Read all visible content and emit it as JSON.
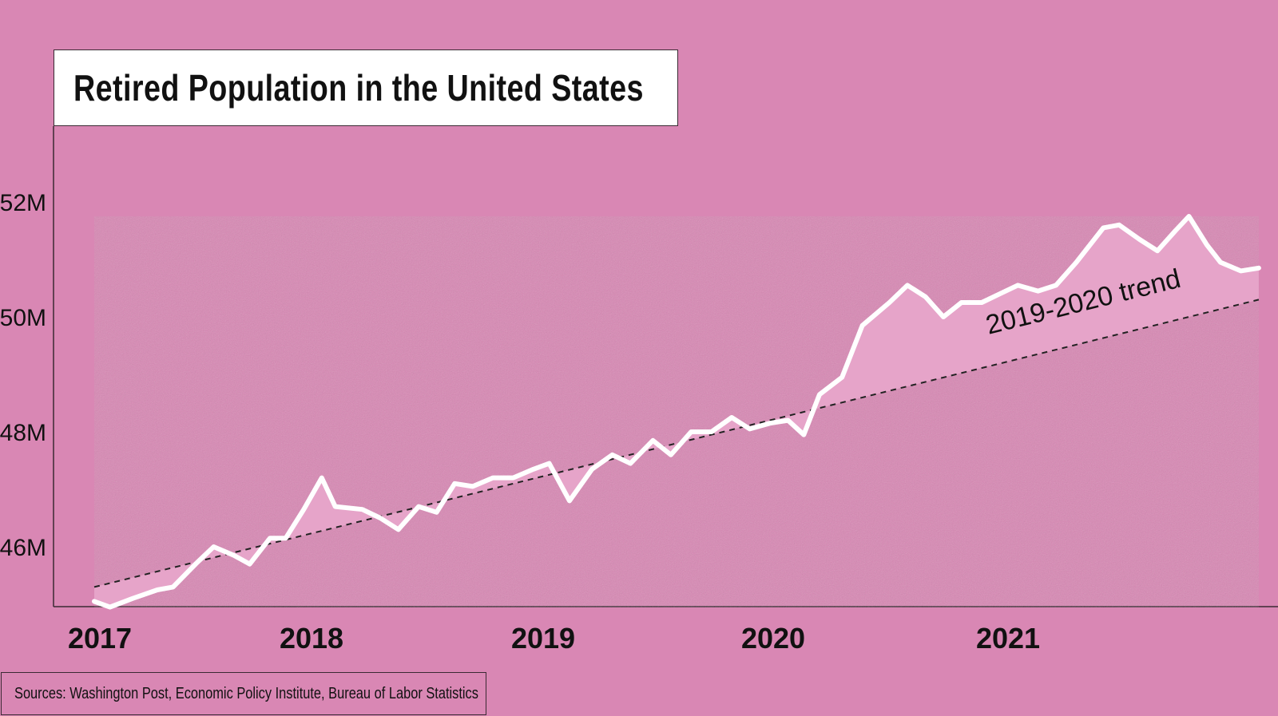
{
  "chart_data": {
    "type": "line",
    "title": "Retired Population in the United States",
    "source": "Sources: Washington Post, Economic Policy Institute, Bureau of Labor Statistics",
    "xlabel": "",
    "ylabel": "",
    "xlim": [
      2017.0,
      2022.0
    ],
    "ylim": [
      45.0,
      53.3
    ],
    "y_ticks": [
      {
        "value": 46,
        "label": "46M"
      },
      {
        "value": 48,
        "label": "48M"
      },
      {
        "value": 50,
        "label": "50M"
      },
      {
        "value": 52,
        "label": "52M"
      }
    ],
    "x_ticks": [
      {
        "value": 2017,
        "label": "2017"
      },
      {
        "value": 2018,
        "label": "2018"
      },
      {
        "value": 2019,
        "label": "2019"
      },
      {
        "value": 2020,
        "label": "2020"
      },
      {
        "value": 2021,
        "label": "2021"
      }
    ],
    "series": [
      {
        "color": "#ffffff",
        "points": [
          [
            2017.0,
            45.05
          ],
          [
            2017.07,
            44.95
          ],
          [
            2017.17,
            45.1
          ],
          [
            2017.28,
            45.25
          ],
          [
            2017.35,
            45.3
          ],
          [
            2017.45,
            45.7
          ],
          [
            2017.53,
            46.0
          ],
          [
            2017.62,
            45.85
          ],
          [
            2017.69,
            45.7
          ],
          [
            2017.78,
            46.15
          ],
          [
            2017.85,
            46.15
          ],
          [
            2017.93,
            46.65
          ],
          [
            2018.01,
            47.2
          ],
          [
            2018.07,
            46.7
          ],
          [
            2018.19,
            46.65
          ],
          [
            2018.27,
            46.5
          ],
          [
            2018.35,
            46.3
          ],
          [
            2018.44,
            46.7
          ],
          [
            2018.52,
            46.6
          ],
          [
            2018.6,
            47.1
          ],
          [
            2018.68,
            47.05
          ],
          [
            2018.77,
            47.2
          ],
          [
            2018.86,
            47.2
          ],
          [
            2018.95,
            47.35
          ],
          [
            2019.02,
            47.45
          ],
          [
            2019.11,
            46.8
          ],
          [
            2019.21,
            47.35
          ],
          [
            2019.3,
            47.6
          ],
          [
            2019.38,
            47.45
          ],
          [
            2019.48,
            47.85
          ],
          [
            2019.56,
            47.6
          ],
          [
            2019.65,
            48.0
          ],
          [
            2019.74,
            48.0
          ],
          [
            2019.83,
            48.25
          ],
          [
            2019.91,
            48.05
          ],
          [
            2020.0,
            48.15
          ],
          [
            2020.08,
            48.2
          ],
          [
            2020.15,
            47.95
          ],
          [
            2020.22,
            48.65
          ],
          [
            2020.32,
            48.95
          ],
          [
            2020.41,
            49.85
          ],
          [
            2020.53,
            50.25
          ],
          [
            2020.61,
            50.55
          ],
          [
            2020.69,
            50.35
          ],
          [
            2020.77,
            50.0
          ],
          [
            2020.85,
            50.25
          ],
          [
            2020.94,
            50.25
          ],
          [
            2021.02,
            50.4
          ],
          [
            2021.1,
            50.55
          ],
          [
            2021.19,
            50.45
          ],
          [
            2021.27,
            50.55
          ],
          [
            2021.36,
            50.95
          ],
          [
            2021.48,
            51.55
          ],
          [
            2021.55,
            51.6
          ],
          [
            2021.64,
            51.35
          ],
          [
            2021.72,
            51.15
          ],
          [
            2021.8,
            51.5
          ],
          [
            2021.86,
            51.75
          ],
          [
            2021.94,
            51.25
          ],
          [
            2022.0,
            50.95
          ],
          [
            2022.09,
            50.8
          ],
          [
            2022.17,
            50.85
          ]
        ]
      }
    ],
    "trend_line": {
      "label": "2019-2020 trend",
      "style": "dashed",
      "start": [
        2017.0,
        45.3
      ],
      "end": [
        2022.17,
        50.3
      ]
    },
    "fill_between_series_and_trend": true,
    "grid": false,
    "legend": "none"
  }
}
